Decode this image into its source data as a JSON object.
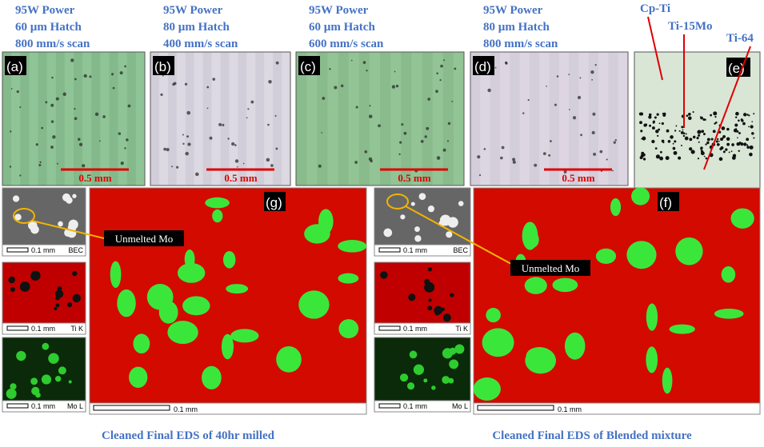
{
  "top_panels": [
    {
      "caption": [
        "95W Power",
        "60 µm Hatch",
        "800 mm/s scan"
      ],
      "letter": "(a)",
      "scale": "0.5 mm"
    },
    {
      "caption": [
        "95W Power",
        "80 µm Hatch",
        "400 mm/s scan"
      ],
      "letter": "(b)",
      "scale": "0.5 mm"
    },
    {
      "caption": [
        "95W Power",
        "60 µm Hatch",
        "600 mm/s scan"
      ],
      "letter": "(c)",
      "scale": "0.5 mm"
    },
    {
      "caption": [
        "95W Power",
        "80 µm Hatch",
        "800 mm/s scan"
      ],
      "letter": "(d)",
      "scale": "0.5 mm"
    }
  ],
  "panel_e": {
    "letter": "(e)",
    "labels": [
      "Cp-Ti",
      "Ti-15Mo",
      "Ti-64"
    ]
  },
  "eds": [
    {
      "letter": "(g)",
      "maps": [
        {
          "scale": "0.1 mm",
          "name": "BEC"
        },
        {
          "scale": "0.1 mm",
          "name": "Ti K"
        },
        {
          "scale": "0.1 mm",
          "name": "Mo L"
        }
      ],
      "scale": "0.1 mm",
      "annotation": "Unmelted  Mo",
      "caption": "Cleaned Final EDS of 40hr milled"
    },
    {
      "letter": "(f)",
      "maps": [
        {
          "scale": "0.1 mm",
          "name": "BEC"
        },
        {
          "scale": "0.1 mm",
          "name": "Ti K"
        },
        {
          "scale": "0.1 mm",
          "name": "Mo L"
        }
      ],
      "scale": "0.1 mm",
      "annotation": "Unmelted  Mo",
      "caption": "Cleaned Final EDS of Blended mixture"
    }
  ]
}
